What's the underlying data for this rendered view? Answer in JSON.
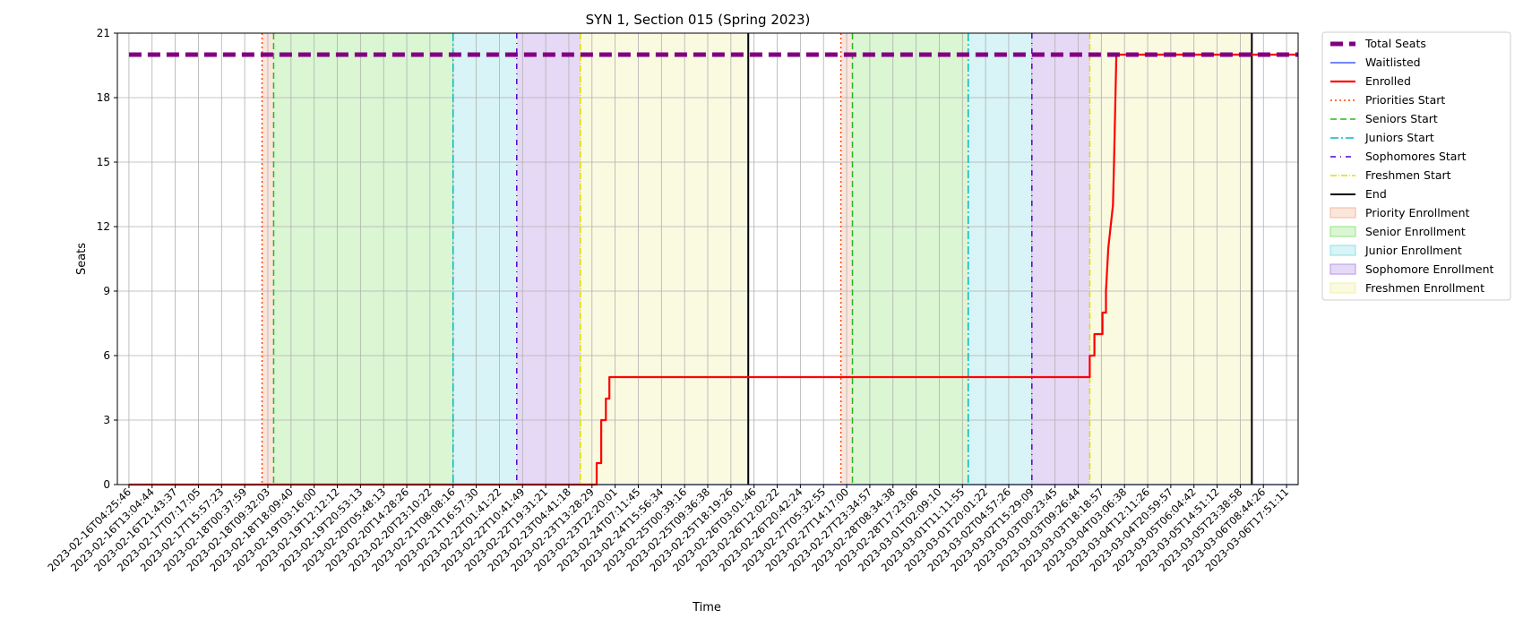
{
  "chart_data": {
    "type": "line",
    "title": "SYN 1, Section 015 (Spring 2023)",
    "xlabel": "Time",
    "ylabel": "Seats",
    "ylim": [
      0,
      21
    ],
    "yticks": [
      0,
      3,
      6,
      9,
      12,
      15,
      18,
      21
    ],
    "xticks": [
      "2023-02-16T04:25:46",
      "2023-02-16T13:04:44",
      "2023-02-16T21:43:37",
      "2023-02-17T07:17:05",
      "2023-02-17T15:57:23",
      "2023-02-18T00:37:59",
      "2023-02-18T09:32:03",
      "2023-02-18T18:09:40",
      "2023-02-19T03:16:00",
      "2023-02-19T12:12:12",
      "2023-02-19T20:53:13",
      "2023-02-20T05:48:13",
      "2023-02-20T14:28:26",
      "2023-02-20T23:10:22",
      "2023-02-21T08:08:16",
      "2023-02-21T16:57:30",
      "2023-02-22T01:41:22",
      "2023-02-22T10:41:49",
      "2023-02-22T19:31:21",
      "2023-02-23T04:41:18",
      "2023-02-23T13:28:29",
      "2023-02-23T22:20:01",
      "2023-02-24T07:11:45",
      "2023-02-24T15:56:34",
      "2023-02-25T00:39:16",
      "2023-02-25T09:36:38",
      "2023-02-25T18:19:26",
      "2023-02-26T03:01:46",
      "2023-02-26T12:02:22",
      "2023-02-26T20:42:24",
      "2023-02-27T05:32:55",
      "2023-02-27T14:17:00",
      "2023-02-27T23:34:57",
      "2023-02-28T08:34:38",
      "2023-02-28T17:23:06",
      "2023-03-01T02:09:10",
      "2023-03-01T11:11:55",
      "2023-03-01T20:01:22",
      "2023-03-02T04:57:26",
      "2023-03-02T15:29:09",
      "2023-03-03T00:23:45",
      "2023-03-03T09:26:44",
      "2023-03-03T18:18:57",
      "2023-03-04T03:06:38",
      "2023-03-04T12:11:26",
      "2023-03-04T20:59:57",
      "2023-03-05T06:04:42",
      "2023-03-05T14:51:12",
      "2023-03-05T23:38:58",
      "2023-03-06T08:44:26",
      "2023-03-06T17:51:11"
    ],
    "grid": true,
    "legend_position": "outside-right",
    "total_seats": 20,
    "periods": [
      {
        "name": "Priority Enrollment",
        "color": "#f4b89a",
        "cycles": [
          [
            5.75,
            6.25
          ],
          [
            30.75,
            31.25
          ]
        ]
      },
      {
        "name": "Senior Enrollment",
        "color": "#96e482",
        "cycles": [
          [
            6.25,
            14.0
          ],
          [
            31.25,
            36.25
          ]
        ]
      },
      {
        "name": "Junior Enrollment",
        "color": "#8ee0e6",
        "cycles": [
          [
            14.0,
            16.75
          ],
          [
            36.25,
            39.0
          ]
        ]
      },
      {
        "name": "Sophomore Enrollment",
        "color": "#b793e6",
        "cycles": [
          [
            16.75,
            19.5
          ],
          [
            39.0,
            41.5
          ]
        ]
      },
      {
        "name": "Freshmen Enrollment",
        "color": "#f0f0a8",
        "cycles": [
          [
            19.5,
            26.75
          ],
          [
            41.5,
            48.5
          ]
        ]
      }
    ],
    "vlines": [
      {
        "name": "Priorities Start",
        "color": "#ff4500",
        "dash": "2,3",
        "positions": [
          5.75,
          30.75
        ]
      },
      {
        "name": "Seniors Start",
        "color": "#22bb22",
        "dash": "7,4",
        "positions": [
          6.25,
          31.25
        ]
      },
      {
        "name": "Juniors Start",
        "color": "#00bbbb",
        "dash": "9,3,2,3",
        "positions": [
          14.0,
          36.25
        ]
      },
      {
        "name": "Sophomores Start",
        "color": "#5500cc",
        "dash": "6,5,1,5",
        "positions": [
          16.75,
          39.0
        ]
      },
      {
        "name": "Freshmen Start",
        "color": "#dddd00",
        "dash": "7,2,1,2",
        "positions": [
          19.5,
          41.5
        ]
      },
      {
        "name": "End",
        "color": "#000000",
        "dash": "",
        "positions": [
          26.75,
          48.5
        ]
      }
    ],
    "series": [
      {
        "name": "Total Seats",
        "color": "#800080",
        "points": [
          [
            0,
            20
          ],
          [
            50.5,
            20
          ]
        ]
      },
      {
        "name": "Waitlisted",
        "color": "#1f3fff",
        "points": [
          [
            0,
            0
          ],
          [
            50.5,
            0
          ]
        ]
      },
      {
        "name": "Enrolled",
        "color": "#ff0000",
        "points": [
          [
            0,
            0
          ],
          [
            20.2,
            0
          ],
          [
            20.2,
            1
          ],
          [
            20.4,
            1
          ],
          [
            20.4,
            3
          ],
          [
            20.6,
            3
          ],
          [
            20.6,
            4
          ],
          [
            20.75,
            4
          ],
          [
            20.75,
            5
          ],
          [
            41.5,
            5
          ],
          [
            41.5,
            6
          ],
          [
            41.7,
            6
          ],
          [
            41.7,
            7
          ],
          [
            42.05,
            7
          ],
          [
            42.05,
            8
          ],
          [
            42.2,
            8
          ],
          [
            42.2,
            9
          ],
          [
            42.3,
            11
          ],
          [
            42.4,
            12
          ],
          [
            42.5,
            13
          ],
          [
            42.55,
            15
          ],
          [
            42.65,
            20
          ],
          [
            50.5,
            20
          ]
        ]
      }
    ]
  }
}
